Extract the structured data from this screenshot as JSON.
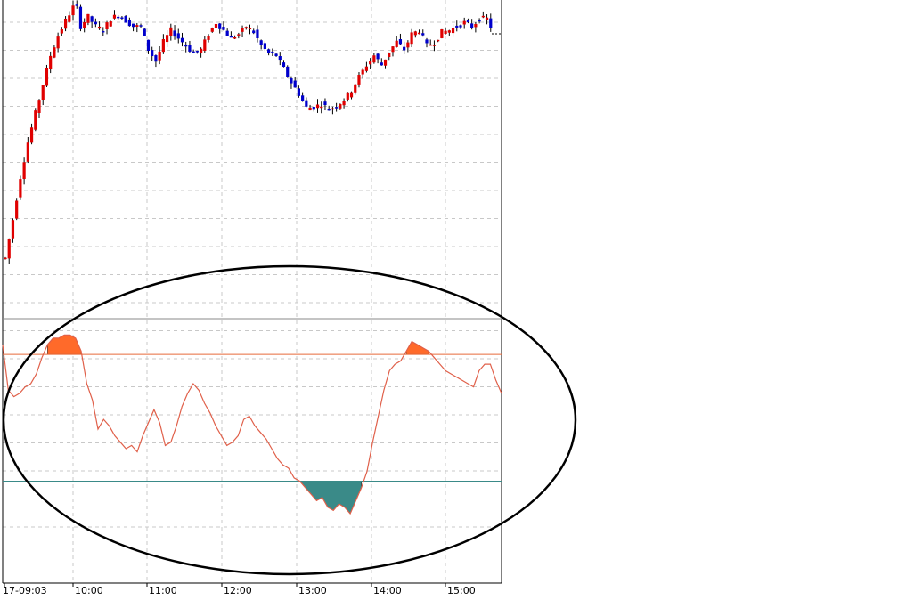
{
  "chart_data": [
    {
      "type": "candlestick",
      "name": "",
      "x_ticks": [
        "17-09:03",
        "10:00",
        "11:00",
        "12:00",
        "13:00",
        "14:00",
        "15:00"
      ],
      "grid": true,
      "colors": {
        "up": "#e00000",
        "down": "#0000cc",
        "grid": "#c8c8c8"
      },
      "close_path": [
        [
          0,
          20
        ],
        [
          2,
          40
        ],
        [
          4,
          62
        ],
        [
          6,
          80
        ],
        [
          8,
          95
        ],
        [
          10,
          110
        ],
        [
          12,
          125
        ],
        [
          14,
          135
        ],
        [
          16,
          143
        ],
        [
          18,
          150
        ],
        [
          19,
          150
        ],
        [
          20,
          140
        ],
        [
          22,
          145
        ],
        [
          24,
          140
        ],
        [
          26,
          138
        ],
        [
          28,
          144
        ],
        [
          30,
          146
        ],
        [
          32,
          143
        ],
        [
          34,
          140
        ],
        [
          36,
          140
        ],
        [
          38,
          128
        ],
        [
          40,
          122
        ],
        [
          42,
          132
        ],
        [
          44,
          138
        ],
        [
          46,
          134
        ],
        [
          48,
          130
        ],
        [
          50,
          126
        ],
        [
          52,
          128
        ],
        [
          54,
          136
        ],
        [
          56,
          142
        ],
        [
          58,
          138
        ],
        [
          60,
          134
        ],
        [
          62,
          136
        ],
        [
          64,
          140
        ],
        [
          66,
          137
        ],
        [
          68,
          130
        ],
        [
          70,
          126
        ],
        [
          72,
          125
        ],
        [
          74,
          118
        ],
        [
          76,
          111
        ],
        [
          78,
          105
        ],
        [
          80,
          98
        ],
        [
          82,
          98
        ],
        [
          84,
          100
        ],
        [
          86,
          97
        ],
        [
          88,
          99
        ],
        [
          90,
          102
        ],
        [
          92,
          107
        ],
        [
          94,
          114
        ],
        [
          96,
          120
        ],
        [
          98,
          125
        ],
        [
          100,
          120
        ],
        [
          102,
          127
        ],
        [
          104,
          132
        ],
        [
          106,
          128
        ],
        [
          108,
          136
        ],
        [
          110,
          138
        ],
        [
          112,
          130
        ],
        [
          114,
          132
        ],
        [
          116,
          137
        ],
        [
          118,
          138
        ],
        [
          120,
          140
        ],
        [
          122,
          142
        ],
        [
          124,
          140
        ],
        [
          126,
          144
        ],
        [
          128,
          144
        ],
        [
          129,
          140
        ]
      ],
      "approx_candles": 130
    },
    {
      "type": "line",
      "name": "",
      "x_ticks": [
        "17-09:03",
        "10:00",
        "11:00",
        "12:00",
        "13:00",
        "14:00",
        "15:00"
      ],
      "upper_level": 69,
      "lower_level": 30,
      "top_line": 80,
      "grid": true,
      "colors": {
        "line": "#e0604a",
        "upper_fill": "#ff6a2a",
        "lower_fill": "#3a8a88",
        "upper_level": "#e86a3a",
        "lower_level": "#3a8a88",
        "top_line": "#888888"
      },
      "values": [
        72,
        58,
        56,
        57,
        59,
        60,
        63,
        68,
        72,
        74,
        74,
        75,
        75,
        74,
        70,
        60,
        55,
        46,
        49,
        47,
        44,
        42,
        40,
        41,
        39,
        44,
        48,
        52,
        48,
        41,
        42,
        47,
        53,
        57,
        60,
        58,
        54,
        51,
        47,
        44,
        41,
        42,
        44,
        49,
        50,
        47,
        45,
        43,
        40,
        37,
        35,
        34,
        31,
        30,
        28,
        26,
        24,
        25,
        22,
        21,
        23,
        22,
        20,
        24,
        28,
        33,
        42,
        50,
        58,
        64,
        66,
        67,
        70,
        73,
        72,
        71,
        70,
        68,
        66,
        64,
        63,
        62,
        61,
        60,
        59,
        64,
        66,
        66,
        61,
        57
      ]
    }
  ]
}
